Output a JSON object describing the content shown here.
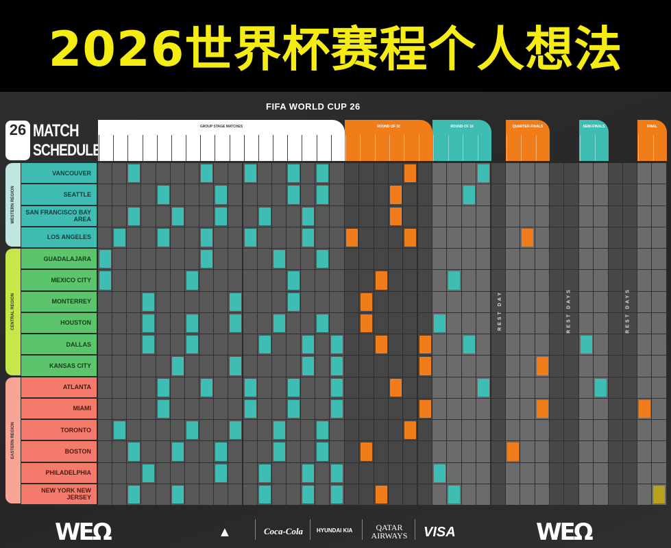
{
  "title": "2026世界杯赛程个人想法",
  "poster": {
    "brand": "FIFA WORLD CUP 26",
    "logo_number": "26",
    "logo_line1": "MATCH",
    "logo_line2": "SCHEDULE",
    "logo_fifa": "FIFA"
  },
  "phases": [
    {
      "label": "GROUP STAGE MATCHES",
      "columns": 17,
      "color": "#ffffff"
    },
    {
      "label": "ROUND OF 32",
      "columns": 6,
      "color": "#f07d1a"
    },
    {
      "label": "ROUND OF 16",
      "columns": 4,
      "color": "#3fbdb3"
    },
    {
      "label": "QUARTER-FINALS",
      "columns": 3,
      "color": "#f07d1a"
    },
    {
      "label": "SEMI-FINALS",
      "columns": 2,
      "color": "#3fbdb3"
    },
    {
      "label": "FINAL",
      "columns": 2,
      "color": "#f07d1a"
    }
  ],
  "rest_labels": [
    "REST DAY",
    "REST DAYS",
    "REST DAYS"
  ],
  "regions": [
    {
      "name": "WESTERN REGION",
      "color": "#3fbdb3",
      "band": "#bfe6df",
      "rows": 4
    },
    {
      "name": "CENTRAL REGION",
      "color": "#5cc46a",
      "band": "#c6e64a",
      "rows": 6
    },
    {
      "name": "EASTERN REGION",
      "color": "#f47b6b",
      "band": "#f8a596",
      "rows": 6
    }
  ],
  "cities": [
    {
      "name": "VANCOUVER",
      "group": [
        2,
        7,
        10,
        13,
        15
      ],
      "ko": [
        [
          "R32",
          4
        ],
        [
          "R16",
          3
        ]
      ]
    },
    {
      "name": "SEATTLE",
      "group": [
        4,
        8,
        13,
        15
      ],
      "ko": [
        [
          "R32",
          3
        ],
        [
          "R16",
          2
        ]
      ]
    },
    {
      "name": "SAN FRANCISCO BAY AREA",
      "group": [
        2,
        5,
        8,
        11,
        14
      ],
      "ko": [
        [
          "R32",
          3
        ]
      ]
    },
    {
      "name": "LOS ANGELES",
      "group": [
        1,
        4,
        7,
        10,
        14
      ],
      "ko": [
        [
          "R32",
          0
        ],
        [
          "R32",
          4
        ],
        [
          "QF",
          1
        ]
      ]
    },
    {
      "name": "GUADALAJARA",
      "group": [
        0,
        7,
        12,
        15
      ],
      "ko": []
    },
    {
      "name": "MEXICO CITY",
      "group": [
        0,
        6,
        13
      ],
      "ko": [
        [
          "R32",
          2
        ],
        [
          "R16",
          1
        ]
      ]
    },
    {
      "name": "MONTERREY",
      "group": [
        3,
        9,
        13
      ],
      "ko": [
        [
          "R32",
          1
        ]
      ]
    },
    {
      "name": "HOUSTON",
      "group": [
        3,
        6,
        9,
        12,
        15
      ],
      "ko": [
        [
          "R32",
          1
        ],
        [
          "R16",
          0
        ]
      ]
    },
    {
      "name": "DALLAS",
      "group": [
        3,
        6,
        11,
        14,
        16
      ],
      "ko": [
        [
          "R32",
          2
        ],
        [
          "R32",
          5
        ],
        [
          "R16",
          2
        ],
        [
          "SF",
          0
        ]
      ]
    },
    {
      "name": "KANSAS CITY",
      "group": [
        5,
        9,
        14,
        16
      ],
      "ko": [
        [
          "R32",
          5
        ],
        [
          "QF",
          2
        ]
      ]
    },
    {
      "name": "ATLANTA",
      "group": [
        4,
        7,
        10,
        13,
        16
      ],
      "ko": [
        [
          "R32",
          3
        ],
        [
          "R16",
          3
        ],
        [
          "SF",
          1
        ]
      ]
    },
    {
      "name": "MIAMI",
      "group": [
        4,
        10,
        13,
        16
      ],
      "ko": [
        [
          "R32",
          5
        ],
        [
          "QF",
          2
        ],
        [
          "F",
          0
        ]
      ]
    },
    {
      "name": "TORONTO",
      "group": [
        1,
        6,
        9,
        12,
        15
      ],
      "ko": [
        [
          "R32",
          4
        ]
      ]
    },
    {
      "name": "BOSTON",
      "group": [
        2,
        5,
        8,
        12,
        15
      ],
      "ko": [
        [
          "R32",
          1
        ],
        [
          "QF",
          0
        ]
      ]
    },
    {
      "name": "PHILADELPHIA",
      "group": [
        3,
        8,
        11,
        14,
        16
      ],
      "ko": [
        [
          "R16",
          0
        ]
      ]
    },
    {
      "name": "NEW YORK NEW JERSEY",
      "group": [
        2,
        5,
        11,
        14,
        16
      ],
      "ko": [
        [
          "R32",
          2
        ],
        [
          "R16",
          1
        ],
        [
          "F",
          1
        ]
      ]
    }
  ],
  "colors": {
    "group_match": "#3fbdb3",
    "r32": "#f07d1a",
    "r16": "#3fbdb3",
    "qf": "#f07d1a",
    "sf": "#3fbdb3",
    "final": "#b8a21e",
    "third_place": "#f07d1a"
  },
  "sponsors": [
    "adidas",
    "Coca-Cola",
    "HYUNDAI KIA",
    "QATAR AIRWAYS",
    "VISA"
  ],
  "slogan_logo": "WE ARE 26"
}
